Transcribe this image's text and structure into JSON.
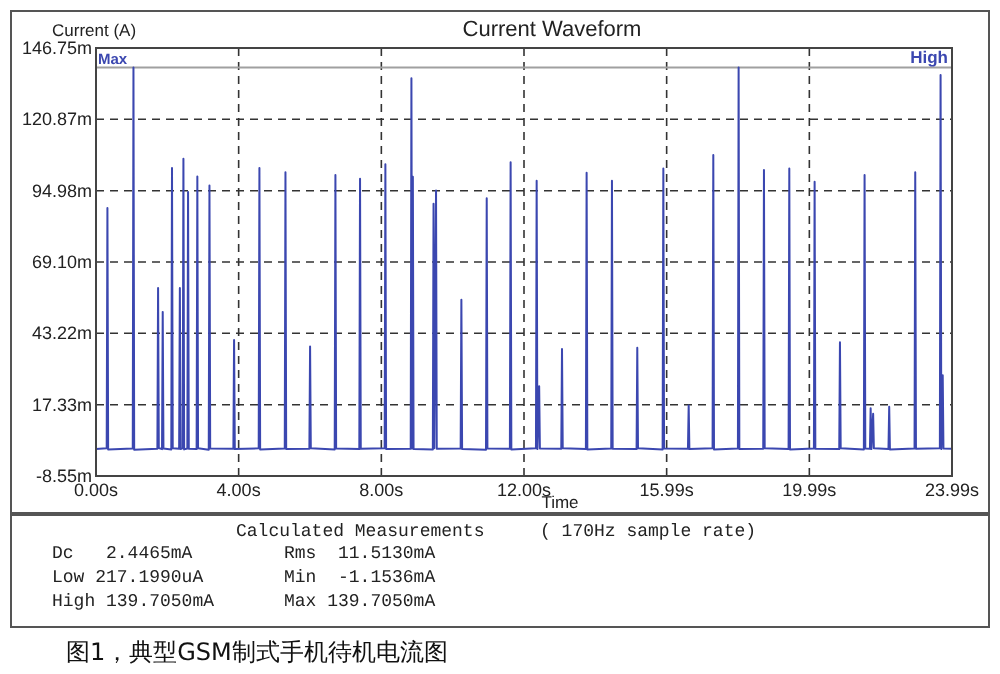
{
  "chart_data": {
    "type": "line",
    "title": "Current Waveform",
    "xlabel": "Time",
    "ylabel": "Current (A)",
    "xlim": [
      0,
      23.99
    ],
    "xticks": [
      {
        "value": 0,
        "label": "0.00s"
      },
      {
        "value": 3.998,
        "label": "4.00s"
      },
      {
        "value": 7.997,
        "label": "8.00s"
      },
      {
        "value": 11.995,
        "label": "12.00s"
      },
      {
        "value": 15.993,
        "label": "15.99s"
      },
      {
        "value": 19.992,
        "label": "19.99s"
      },
      {
        "value": 23.99,
        "label": "23.99s"
      }
    ],
    "ylim": [
      -8.55,
      146.75
    ],
    "yticks": [
      {
        "value": -8.55,
        "label": "-8.55m"
      },
      {
        "value": 17.33,
        "label": "17.33m"
      },
      {
        "value": 43.22,
        "label": "43.22m"
      },
      {
        "value": 69.1,
        "label": "69.10m"
      },
      {
        "value": 94.98,
        "label": "94.98m"
      },
      {
        "value": 120.87,
        "label": "120.87m"
      },
      {
        "value": 146.75,
        "label": "146.75m"
      }
    ],
    "grid": true,
    "marker": "none",
    "line_style": "solid",
    "ref_lines": [
      {
        "axis": "y",
        "value": 139.705,
        "label": "Max",
        "color": "#a0a0a0"
      }
    ],
    "series": [
      {
        "color": "#3b47b0",
        "x": [
          0,
          0.3,
          0.32,
          0.34,
          1.03,
          1.05,
          1.07,
          1.72,
          1.74,
          1.76,
          1.85,
          1.87,
          1.89,
          2.11,
          2.13,
          2.15,
          2.33,
          2.35,
          2.37,
          2.43,
          2.45,
          2.47,
          2.56,
          2.58,
          2.6,
          2.82,
          2.84,
          2.86,
          3.16,
          3.18,
          3.2,
          3.85,
          3.87,
          3.89,
          4.56,
          4.58,
          4.6,
          5.29,
          5.31,
          5.33,
          5.98,
          6.0,
          6.02,
          6.69,
          6.71,
          6.73,
          7.38,
          7.4,
          7.42,
          8.09,
          8.11,
          8.13,
          8.82,
          8.84,
          8.86,
          8.88,
          8.9,
          9.44,
          9.46,
          9.48,
          9.53,
          9.55,
          10.22,
          10.24,
          10.26,
          10.93,
          10.95,
          10.97,
          11.6,
          11.62,
          11.64,
          12.33,
          12.35,
          12.37,
          12.42,
          12.44,
          13.04,
          13.06,
          13.08,
          13.73,
          13.75,
          13.77,
          14.44,
          14.46,
          14.48,
          15.15,
          15.17,
          15.19,
          15.88,
          15.9,
          15.92,
          16.59,
          16.61,
          16.63,
          17.28,
          17.3,
          17.32,
          17.99,
          18.01,
          18.03,
          18.7,
          18.72,
          18.74,
          19.41,
          19.43,
          19.45,
          20.12,
          20.14,
          20.16,
          20.83,
          20.85,
          20.87,
          21.52,
          21.54,
          21.56,
          21.69,
          21.71,
          21.73,
          21.78,
          21.8,
          22.21,
          22.23,
          22.25,
          22.94,
          22.96,
          22.98,
          23.65,
          23.67,
          23.69,
          23.73,
          23.75,
          23.99
        ],
        "values": [
          1.2,
          1.5,
          88.7,
          1.1,
          1.4,
          139.7,
          1.0,
          1.3,
          59.7,
          1.6,
          1.2,
          51.0,
          1.4,
          1.1,
          103.2,
          1.5,
          1.3,
          59.7,
          1.2,
          1.6,
          106.6,
          1.1,
          1.4,
          94.5,
          1.3,
          1.2,
          100.1,
          1.5,
          1.0,
          96.9,
          1.4,
          1.3,
          40.8,
          1.2,
          1.5,
          103.2,
          1.1,
          1.4,
          101.7,
          1.2,
          1.3,
          38.4,
          1.5,
          1.1,
          100.7,
          1.4,
          1.2,
          99.3,
          1.3,
          1.5,
          104.6,
          1.2,
          1.3,
          135.8,
          1.4,
          100.0,
          1.2,
          1.1,
          90.2,
          1.5,
          95.0,
          1.3,
          1.4,
          55.4,
          1.2,
          1.0,
          92.2,
          1.4,
          1.3,
          105.3,
          1.1,
          1.5,
          98.6,
          1.2,
          24.0,
          1.4,
          1.3,
          37.5,
          1.5,
          1.2,
          101.5,
          1.1,
          1.4,
          98.6,
          1.3,
          1.2,
          38.0,
          1.5,
          1.1,
          103.0,
          1.4,
          1.3,
          17.0,
          1.2,
          1.5,
          107.9,
          1.1,
          1.4,
          139.7,
          1.2,
          1.3,
          102.5,
          1.5,
          1.2,
          103.0,
          1.1,
          1.4,
          98.2,
          1.3,
          1.2,
          40.0,
          1.5,
          1.1,
          100.7,
          1.4,
          1.3,
          16.0,
          1.2,
          14.0,
          1.5,
          1.2,
          16.6,
          1.1,
          1.4,
          101.7,
          1.3,
          1.5,
          137.0,
          1.2,
          28.0,
          1.4,
          1.3
        ]
      }
    ],
    "annotations": [
      {
        "text": "High",
        "x": 23.99,
        "y": 139.705
      },
      "Calculated Measurements",
      "( 170Hz sample rate)",
      "Dc   2.4465mA",
      "Rms  11.5130mA",
      "Low 217.1990uA",
      "Min  -1.1536mA",
      "High 139.7050mA",
      "Max 139.7050mA",
      "图1，典型GSM制式手机待机电流图"
    ]
  }
}
